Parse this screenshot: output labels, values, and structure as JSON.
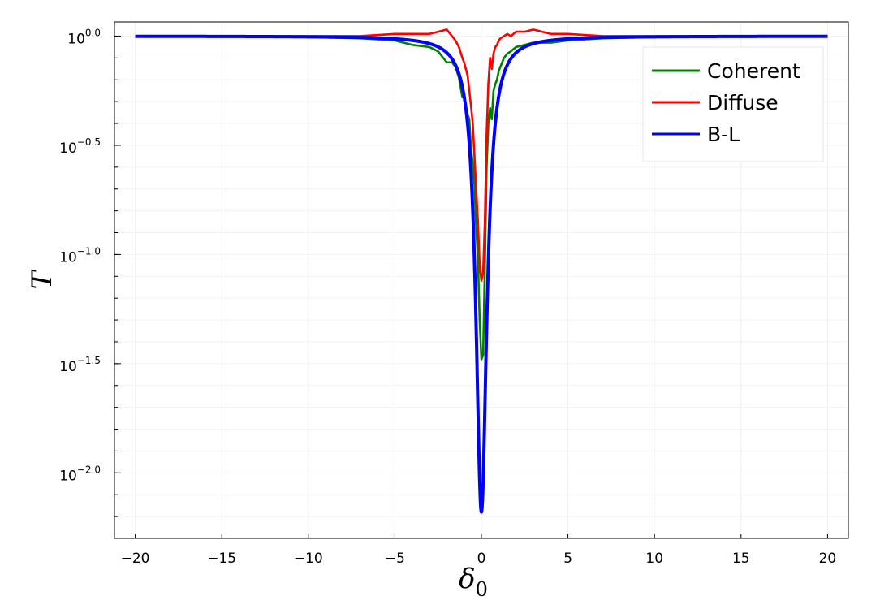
{
  "chart_data": {
    "type": "line",
    "xlabel": "δ",
    "xlabel_subscript": "0",
    "ylabel": "T",
    "x_scale": "linear",
    "y_scale": "log10",
    "xlim": [
      -21.2,
      21.2
    ],
    "ylim_log10": [
      -2.3,
      0.065
    ],
    "grid": true,
    "legend_position": "top-right",
    "x_ticks": [
      -20,
      -15,
      -10,
      -5,
      0,
      5,
      10,
      15,
      20
    ],
    "x_tick_labels": [
      "−20",
      "−15",
      "−10",
      "−5",
      "0",
      "5",
      "10",
      "15",
      "20"
    ],
    "y_ticks_log10": [
      0.0,
      -0.5,
      -1.0,
      -1.5,
      -2.0
    ],
    "y_tick_labels": [
      {
        "base": "10",
        "exp": "0.0"
      },
      {
        "base": "10",
        "exp": "−0.5"
      },
      {
        "base": "10",
        "exp": "−1.0"
      },
      {
        "base": "10",
        "exp": "−1.5"
      },
      {
        "base": "10",
        "exp": "−2.0"
      }
    ],
    "series": [
      {
        "name": "Coherent",
        "color": "#008000",
        "x": [
          -20,
          -15,
          -10,
          -7,
          -5,
          -4,
          -3,
          -2.5,
          -2,
          -1.7,
          -1.5,
          -1.3,
          -1.1,
          -1.0,
          -0.9,
          -0.8,
          -0.7,
          -0.6,
          -0.5,
          -0.4,
          -0.3,
          -0.2,
          -0.1,
          0.0,
          0.1,
          0.2,
          0.3,
          0.4,
          0.5,
          0.6,
          0.7,
          0.8,
          0.9,
          1.0,
          1.1,
          1.3,
          1.5,
          1.7,
          2.0,
          2.5,
          3.0,
          4.0,
          5.0,
          7.0,
          10.0,
          15.0,
          20.0
        ],
        "y_log10": [
          0.0,
          0.0,
          -0.005,
          -0.01,
          -0.02,
          -0.04,
          -0.05,
          -0.07,
          -0.12,
          -0.12,
          -0.14,
          -0.19,
          -0.28,
          -0.26,
          -0.32,
          -0.36,
          -0.38,
          -0.52,
          -0.58,
          -0.68,
          -0.88,
          -1.02,
          -1.3,
          -1.48,
          -1.46,
          -1.05,
          -0.6,
          -0.4,
          -0.33,
          -0.38,
          -0.25,
          -0.22,
          -0.2,
          -0.16,
          -0.14,
          -0.1,
          -0.08,
          -0.07,
          -0.05,
          -0.04,
          -0.03,
          -0.03,
          -0.02,
          -0.01,
          -0.005,
          0.0,
          0.0
        ]
      },
      {
        "name": "Diffuse",
        "color": "#ff0000",
        "x": [
          -20,
          -15,
          -10,
          -7,
          -5,
          -4,
          -3,
          -2.5,
          -2,
          -1.7,
          -1.5,
          -1.3,
          -1.1,
          -1.0,
          -0.9,
          -0.8,
          -0.7,
          -0.6,
          -0.5,
          -0.4,
          -0.3,
          -0.2,
          -0.1,
          0.0,
          0.1,
          0.2,
          0.3,
          0.4,
          0.5,
          0.6,
          0.7,
          0.8,
          0.9,
          1.0,
          1.1,
          1.3,
          1.5,
          1.7,
          2.0,
          2.5,
          3.0,
          4.0,
          5.0,
          7.0,
          10.0,
          15.0,
          20.0
        ],
        "y_log10": [
          0.0,
          0.0,
          0.0,
          0.0,
          0.01,
          0.01,
          0.01,
          0.02,
          0.03,
          0.0,
          -0.02,
          -0.05,
          -0.1,
          -0.12,
          -0.15,
          -0.18,
          -0.25,
          -0.32,
          -0.4,
          -0.55,
          -0.7,
          -0.85,
          -1.05,
          -1.12,
          -1.08,
          -0.85,
          -0.45,
          -0.22,
          -0.1,
          -0.15,
          -0.08,
          -0.05,
          -0.04,
          -0.02,
          -0.01,
          0.0,
          0.01,
          0.0,
          0.02,
          0.02,
          0.03,
          0.01,
          0.01,
          0.0,
          0.0,
          0.0,
          0.0
        ]
      },
      {
        "name": "B-L",
        "color": "#0000ff",
        "curve": "log10 T = -2.18 / (1 + (δ0/0.38)^2)",
        "amplitude_log10": -2.18,
        "half_width": 0.38,
        "x_range": [
          -20,
          20
        ]
      }
    ]
  }
}
